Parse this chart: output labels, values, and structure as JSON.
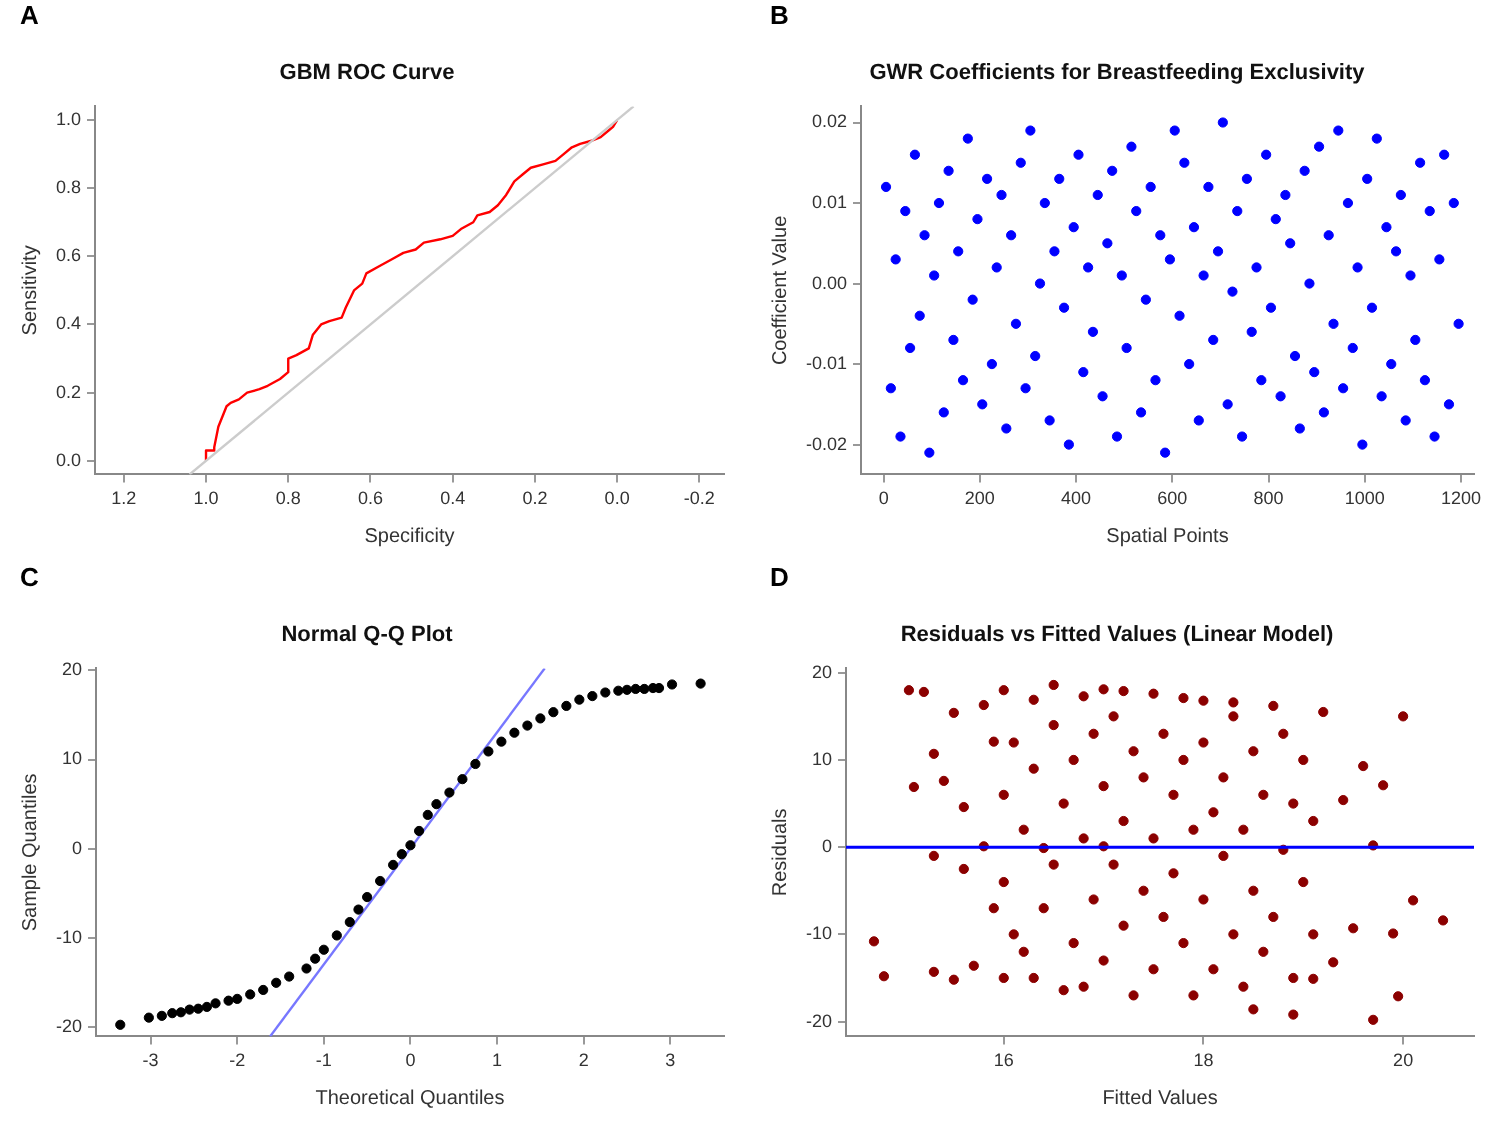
{
  "chart_data": [
    {
      "type": "line",
      "title": "GBM ROC Curve",
      "xlabel": "Specificity",
      "ylabel": "Sensitivity",
      "annotations": [
        "A"
      ],
      "xlim": [
        1.27,
        -0.26
      ],
      "ylim": [
        -0.04,
        1.04
      ],
      "xticks": [
        1.2,
        {
          "value": 1,
          "label": "1.0"
        },
        0.8,
        0.6,
        0.4,
        0.2,
        {
          "value": 0,
          "label": "0.0"
        },
        -0.2
      ],
      "yticks": [
        {
          "value": 0,
          "label": "0.0"
        },
        0.2,
        0.4,
        0.6,
        0.8,
        {
          "value": 1,
          "label": "1.0"
        }
      ],
      "series": [
        {
          "color": "#cccccc",
          "x": [
            1.04,
            -0.04
          ],
          "values": [
            -0.04,
            1.04
          ]
        },
        {
          "color": "#ff0000",
          "x": [
            1.0,
            1.0,
            0.98,
            0.98,
            0.97,
            0.96,
            0.95,
            0.94,
            0.92,
            0.9,
            0.87,
            0.85,
            0.82,
            0.8,
            0.8,
            0.78,
            0.75,
            0.74,
            0.72,
            0.7,
            0.67,
            0.66,
            0.64,
            0.62,
            0.61,
            0.58,
            0.55,
            0.52,
            0.49,
            0.47,
            0.43,
            0.4,
            0.38,
            0.35,
            0.34,
            0.31,
            0.29,
            0.27,
            0.25,
            0.23,
            0.21,
            0.18,
            0.15,
            0.13,
            0.11,
            0.09,
            0.06,
            0.04,
            0.02,
            0.01,
            0.0
          ],
          "values": [
            0,
            0.03,
            0.03,
            0.04,
            0.1,
            0.13,
            0.16,
            0.17,
            0.18,
            0.2,
            0.21,
            0.22,
            0.24,
            0.26,
            0.3,
            0.31,
            0.33,
            0.37,
            0.4,
            0.41,
            0.42,
            0.45,
            0.5,
            0.52,
            0.55,
            0.57,
            0.59,
            0.61,
            0.62,
            0.64,
            0.65,
            0.66,
            0.68,
            0.7,
            0.72,
            0.73,
            0.75,
            0.78,
            0.82,
            0.84,
            0.86,
            0.87,
            0.88,
            0.9,
            0.92,
            0.93,
            0.94,
            0.95,
            0.97,
            0.98,
            1.0
          ]
        }
      ]
    },
    {
      "type": "scatter",
      "title": "GWR Coefficients for Breastfeeding Exclusivity",
      "xlabel": "Spatial Points",
      "ylabel": "Coefficient Value",
      "annotations": [
        "B"
      ],
      "marker": "circle",
      "xlim": [
        -47,
        1227
      ],
      "ylim": [
        -0.0237,
        0.022
      ],
      "xticks": [
        0,
        200,
        400,
        600,
        800,
        1000,
        1200
      ],
      "yticks": [
        {
          "value": -0.02,
          "label": "-0.02"
        },
        {
          "value": -0.01,
          "label": "-0.01"
        },
        {
          "value": 0,
          "label": "0.00"
        },
        {
          "value": 0.01,
          "label": "0.01"
        },
        {
          "value": 0.02,
          "label": "0.02"
        }
      ],
      "series": [
        {
          "color": "#0000ff",
          "x": [
            5,
            15,
            25,
            35,
            45,
            55,
            65,
            75,
            85,
            95,
            105,
            115,
            125,
            135,
            145,
            155,
            165,
            175,
            185,
            195,
            205,
            215,
            225,
            235,
            245,
            255,
            265,
            275,
            285,
            295,
            305,
            315,
            325,
            335,
            345,
            355,
            365,
            375,
            385,
            395,
            405,
            415,
            425,
            435,
            445,
            455,
            465,
            475,
            485,
            495,
            505,
            515,
            525,
            535,
            545,
            555,
            565,
            575,
            585,
            595,
            605,
            615,
            625,
            635,
            645,
            655,
            665,
            675,
            685,
            695,
            705,
            715,
            725,
            735,
            745,
            755,
            765,
            775,
            785,
            795,
            805,
            815,
            825,
            835,
            845,
            855,
            865,
            875,
            885,
            895,
            905,
            915,
            925,
            935,
            945,
            955,
            965,
            975,
            985,
            995,
            1005,
            1015,
            1025,
            1035,
            1045,
            1055,
            1065,
            1075,
            1085,
            1095,
            1105,
            1115,
            1125,
            1135,
            1145,
            1155,
            1165,
            1175,
            1185,
            1195
          ],
          "values": [
            0.012,
            -0.013,
            0.003,
            -0.019,
            0.009,
            -0.008,
            0.016,
            -0.004,
            0.006,
            -0.021,
            0.001,
            0.01,
            -0.016,
            0.014,
            -0.007,
            0.004,
            -0.012,
            0.018,
            -0.002,
            0.008,
            -0.015,
            0.013,
            -0.01,
            0.002,
            0.011,
            -0.018,
            0.006,
            -0.005,
            0.015,
            -0.013,
            0.019,
            -0.009,
            0.0,
            0.01,
            -0.017,
            0.004,
            0.013,
            -0.003,
            -0.02,
            0.007,
            0.016,
            -0.011,
            0.002,
            -0.006,
            0.011,
            -0.014,
            0.005,
            0.014,
            -0.019,
            0.001,
            -0.008,
            0.017,
            0.009,
            -0.016,
            -0.002,
            0.012,
            -0.012,
            0.006,
            -0.021,
            0.003,
            0.019,
            -0.004,
            0.015,
            -0.01,
            0.007,
            -0.017,
            0.001,
            0.012,
            -0.007,
            0.004,
            0.02,
            -0.015,
            -0.001,
            0.009,
            -0.019,
            0.013,
            -0.006,
            0.002,
            -0.012,
            0.016,
            -0.003,
            0.008,
            -0.014,
            0.011,
            0.005,
            -0.009,
            -0.018,
            0.014,
            0.0,
            -0.011,
            0.017,
            -0.016,
            0.006,
            -0.005,
            0.019,
            -0.013,
            0.01,
            -0.008,
            0.002,
            -0.02,
            0.013,
            -0.003,
            0.018,
            -0.014,
            0.007,
            -0.01,
            0.004,
            0.011,
            -0.017,
            0.001,
            -0.007,
            0.015,
            -0.012,
            0.009,
            -0.019,
            0.003,
            0.016,
            -0.015,
            0.01,
            -0.005
          ]
        }
      ]
    },
    {
      "type": "scatter",
      "title": "Normal Q-Q Plot",
      "xlabel": "Theoretical Quantiles",
      "ylabel": "Sample Quantiles",
      "annotations": [
        "C"
      ],
      "marker": "circle",
      "xlim": [
        -3.63,
        3.62
      ],
      "ylim": [
        -21,
        20.2
      ],
      "xticks": [
        -3,
        -2,
        -1,
        0,
        1,
        2,
        3
      ],
      "yticks": [
        -20,
        -10,
        0,
        10,
        20
      ],
      "series": [
        {
          "color": "#000000",
          "x": [
            -3.35,
            -3.02,
            -2.87,
            -2.75,
            -2.65,
            -2.55,
            -2.45,
            -2.35,
            -2.25,
            -2.1,
            -2.0,
            -1.85,
            -1.7,
            -1.55,
            -1.4,
            -1.2,
            -1.1,
            -1.0,
            -0.85,
            -0.7,
            -0.6,
            -0.5,
            -0.35,
            -0.2,
            -0.1,
            0,
            0.1,
            0.2,
            0.3,
            0.45,
            0.6,
            0.75,
            0.9,
            1.05,
            1.2,
            1.35,
            1.5,
            1.65,
            1.8,
            1.95,
            2.1,
            2.25,
            2.4,
            2.5,
            2.6,
            2.7,
            2.8,
            2.87,
            3.02,
            3.35
          ],
          "values": [
            -19.7,
            -18.9,
            -18.7,
            -18.4,
            -18.3,
            -18.0,
            -17.9,
            -17.7,
            -17.3,
            -17.0,
            -16.8,
            -16.3,
            -15.8,
            -15.0,
            -14.3,
            -13.4,
            -12.3,
            -11.3,
            -9.7,
            -8.2,
            -6.8,
            -5.4,
            -3.6,
            -1.8,
            -0.6,
            0.4,
            2,
            3.8,
            5.0,
            6.3,
            7.8,
            9.5,
            10.9,
            12.0,
            13.0,
            13.8,
            14.6,
            15.3,
            16.0,
            16.7,
            17.1,
            17.5,
            17.7,
            17.8,
            17.9,
            17.9,
            18.0,
            18.0,
            18.4,
            18.5
          ]
        },
        {
          "type": "line",
          "marker": "none",
          "color": "#7777ff",
          "x": [
            -1.62,
            1.55
          ],
          "values": [
            -21,
            20.2
          ]
        }
      ]
    },
    {
      "type": "scatter",
      "title": "Residuals vs Fitted Values (Linear Model)",
      "xlabel": "Fitted Values",
      "ylabel": "Residuals",
      "annotations": [
        "D"
      ],
      "marker": "circle",
      "xlim": [
        14.42,
        20.71
      ],
      "ylim": [
        -21.7,
        20.5
      ],
      "xticks": [
        16,
        18,
        20
      ],
      "yticks": [
        -20,
        -10,
        0,
        10,
        20
      ],
      "ref_lines": [
        {
          "axis": "y",
          "value": 0,
          "color": "#0000ff"
        }
      ],
      "series": [
        {
          "color": "#8b0000",
          "x": [
            14.7,
            14.8,
            15.1,
            15.05,
            15.2,
            15.3,
            15.3,
            15.5,
            15.5,
            15.6,
            15.8,
            15.7,
            15.9,
            16.0,
            16.1,
            16.3,
            16.5,
            16.6,
            16.8,
            17.0,
            17.2,
            17.5,
            17.8,
            18.0,
            18.3,
            18.7,
            19.2,
            19.1,
            19.3,
            19.5,
            19.6,
            19.8,
            19.9,
            19.95,
            20.0,
            20.1,
            20.4,
            19.7,
            19.7,
            19.4,
            18.9,
            18.5,
            16.0,
            16.0,
            16.1,
            16.2,
            16.2,
            16.3,
            16.3,
            16.4,
            16.5,
            16.5,
            16.6,
            16.7,
            16.7,
            16.8,
            16.8,
            16.9,
            16.9,
            17.0,
            17.0,
            17.1,
            17.1,
            17.2,
            17.2,
            17.3,
            17.3,
            17.4,
            17.4,
            17.5,
            17.5,
            17.6,
            17.6,
            17.7,
            17.7,
            17.8,
            17.8,
            17.9,
            17.9,
            18.0,
            18.0,
            18.1,
            18.1,
            18.2,
            18.2,
            18.3,
            18.3,
            18.4,
            18.4,
            18.5,
            18.5,
            18.6,
            18.6,
            18.7,
            18.8,
            18.8,
            18.9,
            18.9,
            19.0,
            19.0,
            19.1,
            19.1,
            15.8,
            15.9,
            15.6,
            15.4,
            15.3,
            16.0,
            16.4,
            17.0
          ],
          "values": [
            -10.8,
            -14.8,
            6.9,
            18,
            17.8,
            10.7,
            -14.3,
            15.4,
            -15.2,
            4.6,
            16.3,
            -13.6,
            12.1,
            18,
            -10,
            16.9,
            18.6,
            -16.4,
            17.3,
            18.1,
            17.9,
            17.6,
            17.1,
            16.8,
            16.6,
            16.2,
            15.5,
            -15.1,
            -13.2,
            -9.3,
            9.3,
            7.1,
            -9.9,
            -17.1,
            15.0,
            -6.1,
            -8.4,
            -19.8,
            0.2,
            5.4,
            -19.2,
            -18.6,
            -4,
            6,
            12,
            -12,
            2,
            -15,
            9,
            -7,
            14,
            -2,
            5,
            -11,
            10,
            -16,
            1,
            -6,
            13,
            -13,
            7,
            -2,
            15,
            -9,
            3,
            -17,
            11,
            -5,
            8,
            -14,
            1,
            13,
            -8,
            -3,
            6,
            -11,
            10,
            -17,
            2,
            -6,
            12,
            -14,
            4,
            -1,
            8,
            -10,
            15,
            -16,
            2,
            -5,
            11,
            -12,
            6,
            -8,
            -0.3,
            13,
            -15,
            5,
            -4,
            10,
            -10,
            3,
            0.1,
            -7,
            -2.5,
            7.6,
            -1,
            -15,
            -0.1,
            0.1
          ]
        }
      ]
    }
  ]
}
